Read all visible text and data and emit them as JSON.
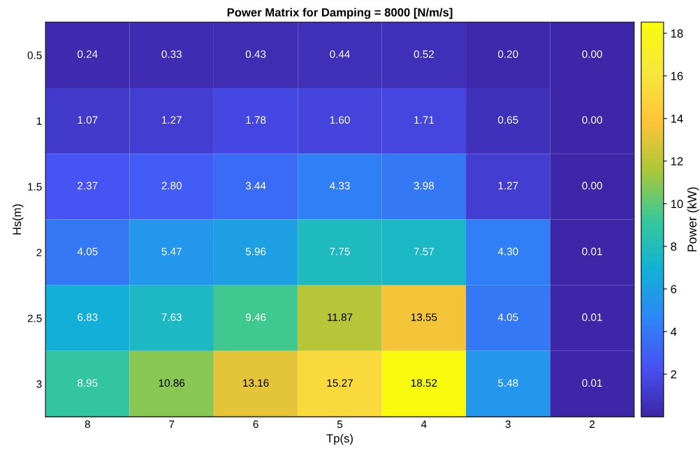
{
  "chart_data": {
    "type": "heatmap",
    "title": "Power Matrix for Damping = 8000 [N/m/s]",
    "xlabel": "Tp(s)",
    "ylabel": "Hs(m)",
    "clabel": "Power (kW)",
    "categories": [
      "8",
      "7",
      "6",
      "5",
      "4",
      "3",
      "2"
    ],
    "y_categories": [
      "0.5",
      "1",
      "1.5",
      "2",
      "2.5",
      "3"
    ],
    "cells": [
      [
        0.24,
        0.33,
        0.43,
        0.44,
        0.52,
        0.2,
        0.0
      ],
      [
        1.07,
        1.27,
        1.78,
        1.6,
        1.71,
        0.65,
        0.0
      ],
      [
        2.37,
        2.8,
        3.44,
        4.33,
        3.98,
        1.27,
        0.0
      ],
      [
        4.05,
        5.47,
        5.96,
        7.75,
        7.57,
        4.3,
        0.01
      ],
      [
        6.83,
        7.63,
        9.46,
        11.87,
        13.55,
        4.05,
        0.01
      ],
      [
        8.95,
        10.86,
        13.16,
        15.27,
        18.52,
        5.48,
        0.01
      ]
    ],
    "cell_labels": [
      [
        "0.24",
        "0.33",
        "0.43",
        "0.44",
        "0.52",
        "0.20",
        "0.00"
      ],
      [
        "1.07",
        "1.27",
        "1.78",
        "1.60",
        "1.71",
        "0.65",
        "0.00"
      ],
      [
        "2.37",
        "2.80",
        "3.44",
        "4.33",
        "3.98",
        "1.27",
        "0.00"
      ],
      [
        "4.05",
        "5.47",
        "5.96",
        "7.75",
        "7.57",
        "4.30",
        "0.01"
      ],
      [
        "6.83",
        "7.63",
        "9.46",
        "11.87",
        "13.55",
        "4.05",
        "0.01"
      ],
      [
        "8.95",
        "10.86",
        "13.16",
        "15.27",
        "18.52",
        "5.48",
        "0.01"
      ]
    ],
    "clim": [
      0,
      18.52
    ],
    "cticks": [
      2,
      4,
      6,
      8,
      10,
      12,
      14,
      16,
      18
    ]
  }
}
